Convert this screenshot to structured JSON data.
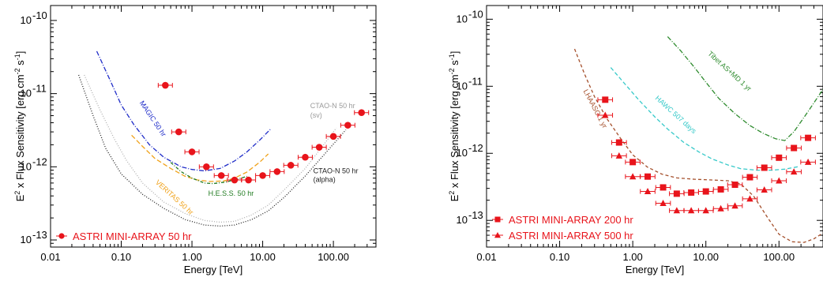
{
  "chart_data": [
    {
      "type": "scatter",
      "xlabel": "Energy [TeV]",
      "ylabel_main": "E",
      "ylabel_sup": "2",
      "ylabel_rest": " x Flux Sensitivity [erg cm",
      "ylabel_sup2": "-2",
      "ylabel_rest2": " s",
      "ylabel_sup3": "-1",
      "ylabel_end": "]",
      "x_scale": "log",
      "y_scale": "log",
      "xlim": [
        0.01,
        400
      ],
      "ylim": [
        8e-14,
        1.6e-10
      ],
      "x_ticks": [
        {
          "v": 0.01,
          "label": "0.01"
        },
        {
          "v": 0.1,
          "label": "0.10"
        },
        {
          "v": 1,
          "label": "1.00"
        },
        {
          "v": 10,
          "label": "10.00"
        },
        {
          "v": 100,
          "label": "100.00"
        }
      ],
      "y_ticks": [
        {
          "v": 1e-13,
          "base": "10",
          "exp": "-13"
        },
        {
          "v": 1e-12,
          "base": "10",
          "exp": "-12"
        },
        {
          "v": 1e-11,
          "base": "10",
          "exp": "-11"
        },
        {
          "v": 1e-10,
          "base": "10",
          "exp": "-10"
        }
      ],
      "series": [
        {
          "name": "ASTRI MINI-ARRAY 50 hr",
          "marker": "circle",
          "color": "#e8141b",
          "x": [
            0.42,
            0.65,
            1.0,
            1.6,
            2.6,
            4.0,
            6.3,
            10.0,
            16.0,
            25.0,
            40.0,
            63.0,
            100.0,
            160.0,
            250.0
          ],
          "y": [
            1.3e-11,
            3e-12,
            1.6e-12,
            1e-12,
            7.6e-13,
            6.6e-13,
            6.6e-13,
            7.6e-13,
            8.6e-13,
            1.05e-12,
            1.35e-12,
            1.85e-12,
            2.6e-12,
            3.7e-12,
            5.5e-12
          ]
        }
      ],
      "curves": [
        {
          "name": "MAGIC 50 hr",
          "color": "#1f2cc8",
          "dash": "6,2,1,2",
          "x": [
            0.045,
            0.07,
            0.1,
            0.15,
            0.25,
            0.4,
            0.7,
            1.0,
            1.5,
            2.5,
            4.0,
            6.0,
            9.0,
            13.0
          ],
          "y": [
            3.8e-11,
            1.5e-11,
            7e-12,
            3.8e-12,
            2e-12,
            1.35e-12,
            1e-12,
            9.2e-13,
            8.8e-13,
            9.5e-13,
            1.2e-12,
            1.6e-12,
            2.3e-12,
            3.3e-12
          ]
        },
        {
          "name": "VERITAS 50 hr",
          "color": "#f0a21a",
          "dash": "6,3",
          "x": [
            0.14,
            0.2,
            0.3,
            0.5,
            0.8,
            1.2,
            1.8,
            2.8,
            4.0,
            6.0,
            9.0,
            12.0
          ],
          "y": [
            2.7e-12,
            1.9e-12,
            1.3e-12,
            9.5e-13,
            7.4e-13,
            6.6e-13,
            6.3e-13,
            6.4e-13,
            7e-13,
            8.5e-13,
            1.15e-12,
            1.5e-12
          ]
        },
        {
          "name": "H.E.S.S. 50 hr",
          "color": "#1f7a1f",
          "dash": "4,2,1,2",
          "x": [
            0.5,
            0.7,
            1.0,
            1.5,
            2.0,
            3.0,
            4.5,
            6.0
          ],
          "y": [
            1.15e-12,
            8.6e-13,
            7e-13,
            6e-13,
            5.9e-13,
            6.2e-13,
            6.8e-13,
            7.4e-13
          ]
        },
        {
          "name": "CTAO-N 50 hr (alpha)",
          "color": "#222222",
          "dash": "1,2",
          "x": [
            0.025,
            0.04,
            0.06,
            0.1,
            0.2,
            0.4,
            0.8,
            1.5,
            2.5,
            4.0,
            7.0,
            12.0,
            20.0,
            40.0,
            80.0,
            150.0
          ],
          "y": [
            1.8e-11,
            5e-12,
            1.8e-12,
            8e-13,
            4.2e-13,
            2.7e-13,
            1.9e-13,
            1.6e-13,
            1.55e-13,
            1.6e-13,
            1.9e-13,
            2.5e-13,
            3.8e-13,
            7.5e-13,
            1.6e-12,
            3.2e-12
          ]
        },
        {
          "name": "CTAO-N 50 hr (sv)",
          "color": "#b0b0b0",
          "dash": "1,2",
          "x": [
            0.03,
            0.05,
            0.08,
            0.12,
            0.2,
            0.4,
            0.8,
            1.5,
            2.5,
            4.0,
            7.0,
            12.0,
            20.0,
            40.0,
            70.0,
            110.0
          ],
          "y": [
            1.8e-11,
            6e-12,
            2.4e-12,
            1.2e-12,
            6e-13,
            3.3e-13,
            2.3e-13,
            1.85e-13,
            1.75e-13,
            1.8e-13,
            2.2e-13,
            3e-13,
            4.8e-13,
            9.5e-13,
            1.9e-12,
            3.4e-12
          ]
        }
      ],
      "annotations": [
        {
          "text": "MAGIC 50 hr",
          "color": "#1f2cc8",
          "x": 0.18,
          "y": 7.5e-12,
          "rot": 56
        },
        {
          "text": "VERITAS 50 hr",
          "color": "#f0a21a",
          "x": 0.3,
          "y": 6e-13,
          "rot": 42
        },
        {
          "text": "H.E.S.S. 50 hr",
          "color": "#1f7a1f",
          "x": 1.7,
          "y": 4e-13,
          "rot": 0
        },
        {
          "text": "CTAO-N 50 hr",
          "color": "#222222",
          "x": 52,
          "y": 8.2e-13,
          "rot": 0
        },
        {
          "text": "(alpha)",
          "color": "#222222",
          "x": 52,
          "y": 6.2e-13,
          "rot": 0
        },
        {
          "text": "CTAO-N 50 hr",
          "color": "#9a9a9a",
          "x": 47,
          "y": 6.3e-12,
          "rot": 0
        },
        {
          "text": "(sv)",
          "color": "#9a9a9a",
          "x": 47,
          "y": 4.7e-12,
          "rot": 0
        }
      ],
      "legend": [
        {
          "label": "ASTRI MINI-ARRAY 50 hr",
          "marker": "circle",
          "color": "#e8141b"
        }
      ],
      "legend_position": "bottom-left"
    },
    {
      "type": "scatter",
      "xlabel": "Energy [TeV]",
      "ylabel_main": "E",
      "ylabel_sup": "2",
      "ylabel_rest": " x Flux Sensitivity [erg cm",
      "ylabel_sup2": "-2",
      "ylabel_rest2": " s",
      "ylabel_sup3": "-1",
      "ylabel_end": "]",
      "x_scale": "log",
      "y_scale": "log",
      "xlim": [
        0.01,
        400
      ],
      "ylim": [
        4e-14,
        1.6e-10
      ],
      "x_ticks": [
        {
          "v": 0.01,
          "label": "0.01"
        },
        {
          "v": 0.1,
          "label": "0.10"
        },
        {
          "v": 1,
          "label": "1.00"
        },
        {
          "v": 10,
          "label": "10.00"
        },
        {
          "v": 100,
          "label": "100.00"
        }
      ],
      "y_ticks": [
        {
          "v": 1e-13,
          "base": "10",
          "exp": "-13"
        },
        {
          "v": 1e-12,
          "base": "10",
          "exp": "-12"
        },
        {
          "v": 1e-11,
          "base": "10",
          "exp": "-11"
        },
        {
          "v": 1e-10,
          "base": "10",
          "exp": "-10"
        }
      ],
      "series": [
        {
          "name": "ASTRI MINI-ARRAY 200 hr",
          "marker": "square",
          "color": "#e8141b",
          "x": [
            0.42,
            0.65,
            1.0,
            1.6,
            2.6,
            4.0,
            6.3,
            10.0,
            16.0,
            25.0,
            40.0,
            63.0,
            100.0,
            160.0,
            250.0
          ],
          "y": [
            6.3e-12,
            1.45e-12,
            7.4e-13,
            4.5e-13,
            3.1e-13,
            2.5e-13,
            2.6e-13,
            2.7e-13,
            2.9e-13,
            3.4e-13,
            4.4e-13,
            6.1e-13,
            8.6e-13,
            1.2e-12,
            1.7e-12
          ]
        },
        {
          "name": "ASTRI MINI-ARRAY 500 hr",
          "marker": "triangle",
          "color": "#e8141b",
          "x": [
            0.42,
            0.65,
            1.0,
            1.6,
            2.6,
            4.0,
            6.3,
            10.0,
            16.0,
            25.0,
            40.0,
            63.0,
            100.0,
            160.0,
            250.0
          ],
          "y": [
            3.7e-12,
            9.2e-13,
            4.5e-13,
            2.7e-13,
            1.8e-13,
            1.4e-13,
            1.4e-13,
            1.4e-13,
            1.5e-13,
            1.65e-13,
            2.1e-13,
            2.85e-13,
            3.9e-13,
            5.3e-13,
            7.4e-13
          ]
        }
      ],
      "curves": [
        {
          "name": "LHAASO 1 yr",
          "color": "#a5502c",
          "dash": "4,3",
          "x": [
            0.16,
            0.22,
            0.3,
            0.45,
            0.7,
            1.0,
            1.6,
            2.5,
            4.0,
            7.0,
            12.0,
            20.0,
            30.0,
            45.0,
            70.0,
            100.0,
            150.0,
            220.0,
            300.0,
            400.0
          ],
          "y": [
            3.6e-11,
            1.5e-11,
            7e-12,
            3.2e-12,
            1.6e-12,
            9.5e-13,
            6.2e-13,
            4.9e-13,
            4.3e-13,
            4.1e-13,
            4e-13,
            3.9e-13,
            3.5e-13,
            2.3e-13,
            1.1e-13,
            6.2e-14,
            4.8e-14,
            4.7e-14,
            5.3e-14,
            6.5e-14
          ]
        },
        {
          "name": "HAWC 507 days",
          "color": "#36c9c9",
          "dash": "5,3",
          "x": [
            0.5,
            0.8,
            1.2,
            2.0,
            3.0,
            5.0,
            8.0,
            12.0,
            20.0,
            30.0,
            50.0,
            80.0,
            120.0,
            180.0
          ],
          "y": [
            1.9e-11,
            1.05e-11,
            6.3e-12,
            3.5e-12,
            2.3e-12,
            1.45e-12,
            1.05e-12,
            8.3e-13,
            6.7e-13,
            5.9e-13,
            5.6e-13,
            5.6e-13,
            5.8e-13,
            6.3e-13
          ]
        },
        {
          "name": "Tibet ASγ+MD 1 yr",
          "color": "#2e8b2e",
          "dash": "6,2,1,2",
          "x": [
            3.0,
            4.5,
            7.0,
            10.0,
            15.0,
            25.0,
            40.0,
            60.0,
            90.0,
            120.0,
            160.0,
            250.0,
            400.0
          ],
          "y": [
            5.5e-11,
            3.4e-11,
            1.9e-11,
            1.15e-11,
            6.6e-12,
            3.9e-12,
            2.6e-12,
            2e-12,
            1.65e-12,
            1.55e-12,
            2.1e-12,
            4.2e-12,
            9e-12
          ]
        }
      ],
      "annotations": [
        {
          "text": "LHAASO 1 yr",
          "color": "#a5502c",
          "x": 0.21,
          "y": 8.5e-12,
          "rot": 62
        },
        {
          "text": "HAWC 507 days",
          "color": "#36c9c9",
          "x": 2.0,
          "y": 6.5e-12,
          "rot": 42
        },
        {
          "text": "Tibet AS+MD 1 yr",
          "color": "#2e8b2e",
          "x": 10.5,
          "y": 3e-11,
          "rot": 42
        }
      ],
      "legend": [
        {
          "label": "ASTRI MINI-ARRAY 200 hr",
          "marker": "square",
          "color": "#e8141b"
        },
        {
          "label": "ASTRI MINI-ARRAY 500 hr",
          "marker": "triangle",
          "color": "#e8141b"
        }
      ],
      "legend_position": "bottom-left"
    }
  ]
}
